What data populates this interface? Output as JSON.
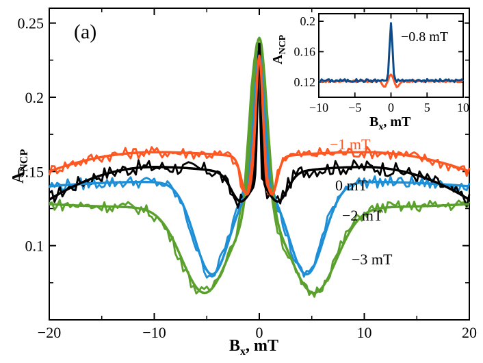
{
  "chart_data": [
    {
      "type": "line",
      "panel_label": "(a)",
      "xlabel": "B",
      "xlabel_sub": "x",
      "xlabel_unit": ", mT",
      "ylabel": "A",
      "ylabel_sub": "NCP",
      "xlim": [
        -20,
        20
      ],
      "ylim": [
        0.05,
        0.26
      ],
      "xticks": [
        -20,
        -10,
        0,
        10,
        20
      ],
      "xtick_labels": [
        "−20",
        "−10",
        "0",
        "10",
        "20"
      ],
      "yticks": [
        0.1,
        0.15,
        0.2,
        0.25
      ],
      "ytick_labels": [
        "0.1",
        "0.15",
        "0.2",
        "0.25"
      ],
      "grid": false,
      "series": [
        {
          "name": "0 mT",
          "color": "#000000",
          "fit": {
            "base": 0.153,
            "dip": 0.018,
            "dip_center": 1.8,
            "dip_width": 0.7,
            "decay": 0.022,
            "peak": 0.236,
            "peak_width": 0.25
          },
          "noise": 0.005
        },
        {
          "name": "−1 mT",
          "color": "#ff5722",
          "fit": {
            "base": 0.163,
            "dip": 0.025,
            "dip_center": 1.2,
            "dip_width": 0.4,
            "decay": 0.013,
            "peak": 0.228,
            "peak_width": 0.42
          },
          "noise": 0.004
        },
        {
          "name": "−2 mT",
          "color": "#1e8fd6",
          "fit": {
            "base": 0.143,
            "dip": 0.062,
            "dip_center": 4.5,
            "dip_width": 1.3,
            "decay": 0.003,
            "peak": 0.232,
            "peak_width": 0.75
          },
          "noise": 0.004
        },
        {
          "name": "−3 mT",
          "color": "#5aa02c",
          "fit": {
            "base": 0.126,
            "dip": 0.058,
            "dip_center": 5.2,
            "dip_width": 1.7,
            "decay": -0.002,
            "peak": 0.24,
            "peak_width": 1.0
          },
          "noise": 0.004
        }
      ]
    },
    {
      "type": "line",
      "role": "inset",
      "xlabel": "B",
      "xlabel_sub": "x",
      "xlabel_unit": ", mT",
      "ylabel": "A",
      "ylabel_sub": "NCP",
      "xlim": [
        -10,
        10
      ],
      "ylim": [
        0.1,
        0.21
      ],
      "xticks": [
        -10,
        -5,
        0,
        5,
        10
      ],
      "xtick_labels": [
        "−10",
        "−5",
        "0",
        "5",
        "10"
      ],
      "yticks": [
        0.12,
        0.16,
        0.2
      ],
      "ytick_labels": [
        "0.12",
        "0.16",
        "0.2"
      ],
      "series": [
        {
          "name": "−0.8 mT",
          "color": "#0d4a8a",
          "base": 0.122,
          "peak": 0.196,
          "peak_width": 0.28,
          "noise": 0.002
        },
        {
          "name": "",
          "color": "#ff5722",
          "base": 0.121,
          "peak": 0.13,
          "peak_width": 0.35,
          "dip": 0.008,
          "dip_center": 0.9,
          "noise": 0.001
        }
      ]
    }
  ]
}
